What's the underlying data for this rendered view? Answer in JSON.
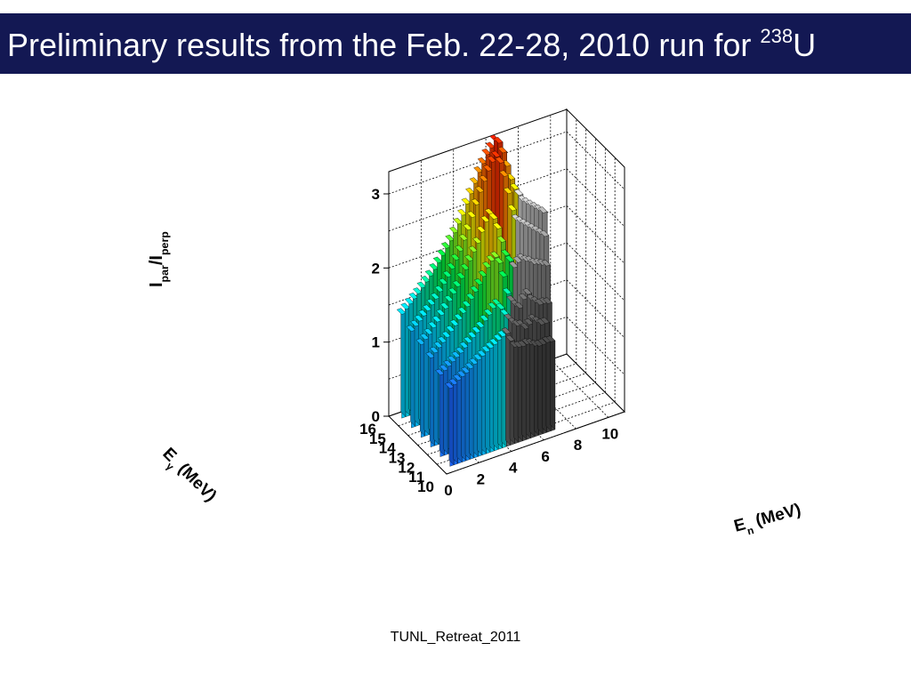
{
  "slide": {
    "title_main": "Preliminary results from the Feb. 22-28, 2010 run for ",
    "title_sup": "238",
    "title_end": "U",
    "footer": "TUNL_Retreat_2011",
    "title_bar_color": "#131853"
  },
  "chart_data": {
    "type": "3d-bar-lego",
    "zlabel": "I_par/I_perp",
    "zlabel_main": "I",
    "zlabel_sub1": "par",
    "zlabel_slash": "/I",
    "zlabel_sub2": "perp",
    "ylabel": "E_γ (MeV)",
    "ylabel_e": "E",
    "ylabel_sub": "γ",
    "ylabel_rest": " (MeV)",
    "xlabel": "E_n (MeV)",
    "xlabel_e": "E",
    "xlabel_sub": "n",
    "xlabel_rest": " (MeV)",
    "xlim": [
      0,
      11
    ],
    "ylim": [
      10,
      16
    ],
    "zlim": [
      0,
      3.3
    ],
    "xticks": [
      "0",
      "2",
      "4",
      "6",
      "8",
      "10"
    ],
    "yticks": [
      "10",
      "11",
      "12",
      "13",
      "14",
      "15",
      "16"
    ],
    "zticks": [
      "0",
      "1",
      "2",
      "3"
    ],
    "grid": true,
    "colormap": "rainbow (violet-blue-cyan-green-yellow-orange-red); bins above kinematic limit drawn in grayscale",
    "series": [
      {
        "e_gamma_bin": [
          10.5,
          11.0
        ],
        "x_start": 0.5,
        "x_step": 0.25,
        "gray_from": 4.0,
        "values": [
          1.05,
          1.08,
          1.12,
          1.15,
          1.18,
          1.22,
          1.26,
          1.3,
          1.33,
          1.37,
          1.4,
          1.43,
          1.47,
          1.5,
          1.52,
          1.4,
          1.3,
          1.28,
          1.27,
          1.28,
          1.26,
          1.22,
          1.2,
          1.2,
          1.21,
          1.2
        ]
      },
      {
        "e_gamma_bin": [
          11.5,
          12.0
        ],
        "x_start": 0.5,
        "x_step": 0.25,
        "gray_from": 4.75,
        "values": [
          1.1,
          1.14,
          1.18,
          1.22,
          1.26,
          1.3,
          1.35,
          1.4,
          1.45,
          1.5,
          1.55,
          1.62,
          1.68,
          1.75,
          1.78,
          1.7,
          1.6,
          1.52,
          1.45,
          1.4,
          1.38,
          1.32,
          1.36,
          1.4,
          1.35,
          1.3,
          1.3
        ]
      },
      {
        "e_gamma_bin": [
          12.5,
          13.0
        ],
        "x_start": 0.5,
        "x_step": 0.25,
        "gray_from": 5.5,
        "values": [
          1.2,
          1.25,
          1.3,
          1.35,
          1.4,
          1.46,
          1.52,
          1.58,
          1.65,
          1.72,
          1.8,
          1.88,
          1.96,
          2.05,
          2.15,
          2.22,
          2.25,
          2.15,
          1.95,
          1.7,
          1.58,
          1.5,
          1.45,
          1.55,
          1.6,
          1.5,
          1.45,
          1.4,
          1.4,
          1.38
        ]
      },
      {
        "e_gamma_bin": [
          13.5,
          14.0
        ],
        "x_start": 0.5,
        "x_step": 0.25,
        "gray_from": 6.25,
        "values": [
          1.25,
          1.3,
          1.35,
          1.42,
          1.48,
          1.55,
          1.62,
          1.7,
          1.78,
          1.86,
          1.95,
          2.05,
          2.15,
          2.25,
          2.35,
          2.48,
          2.6,
          2.68,
          2.6,
          2.45,
          2.25,
          2.05,
          1.95,
          1.85,
          1.9,
          1.92,
          1.88,
          1.85,
          1.8,
          1.78,
          1.75,
          1.72
        ]
      },
      {
        "e_gamma_bin": [
          14.5,
          15.0
        ],
        "x_start": 0.5,
        "x_step": 0.25,
        "gray_from": 7.0,
        "values": [
          1.3,
          1.35,
          1.4,
          1.45,
          1.5,
          1.56,
          1.62,
          1.7,
          1.78,
          1.86,
          1.95,
          2.05,
          2.15,
          2.28,
          2.4,
          2.55,
          2.7,
          2.85,
          2.98,
          3.1,
          3.2,
          3.25,
          3.15,
          2.95,
          2.7,
          2.45,
          2.3,
          2.25,
          2.2,
          2.15,
          2.1,
          2.05,
          2.0,
          1.95
        ]
      },
      {
        "e_gamma_bin": [
          15.5,
          16.0
        ],
        "x_start": 0.5,
        "x_step": 0.25,
        "gray_from": 7.75,
        "values": [
          1.4,
          1.45,
          1.5,
          1.55,
          1.6,
          1.66,
          1.72,
          1.78,
          1.85,
          1.92,
          2.0,
          2.08,
          2.16,
          2.25,
          2.35,
          2.45,
          2.58,
          2.7,
          2.82,
          2.95,
          3.05,
          3.15,
          3.22,
          3.3,
          3.25,
          3.1,
          2.9,
          2.7,
          2.55,
          2.45,
          2.35,
          2.3,
          2.25,
          2.2,
          2.15,
          2.1
        ]
      }
    ]
  }
}
